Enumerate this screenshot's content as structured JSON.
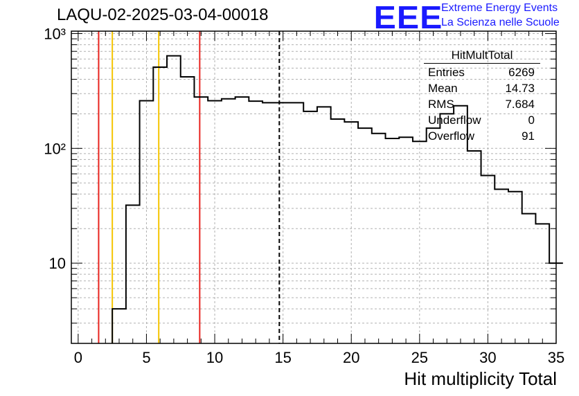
{
  "chart_data": {
    "type": "histogram",
    "title": "LAQU-02-2025-03-04-00018",
    "xlabel": "Hit multiplicity Total",
    "ylabel": "",
    "x_range": [
      -0.5,
      35
    ],
    "y_range": [
      2,
      1050
    ],
    "y_scale": "log",
    "grid": true,
    "bin_width": 1,
    "bin_low_edges": [
      2.5,
      3.5,
      4.5,
      5.5,
      6.5,
      7.5,
      8.5,
      9.5,
      10.5,
      11.5,
      12.5,
      13.5,
      14.5,
      15.5,
      16.5,
      17.5,
      18.5,
      19.5,
      20.5,
      21.5,
      22.5,
      23.5,
      24.5,
      25.5,
      26.5,
      27.5,
      28.5,
      29.5,
      30.5,
      31.5,
      32.5,
      33.5,
      34.5
    ],
    "counts": [
      4,
      32,
      260,
      510,
      640,
      420,
      280,
      260,
      270,
      280,
      258,
      250,
      250,
      250,
      210,
      230,
      180,
      170,
      150,
      135,
      122,
      125,
      115,
      150,
      200,
      235,
      95,
      58,
      44,
      42,
      27,
      22,
      10
    ],
    "x_ticks": [
      0,
      5,
      10,
      15,
      20,
      25,
      30,
      35
    ],
    "x_tick_labels": [
      "0",
      "5",
      "10",
      "15",
      "20",
      "25",
      "30",
      "35"
    ],
    "y_ticks": [
      10,
      100,
      1000
    ],
    "y_tick_labels": [
      "10",
      "10²",
      "10³"
    ],
    "vertical_lines": [
      {
        "x": 1.5,
        "color": "#e8231e",
        "style": "solid"
      },
      {
        "x": 2.5,
        "color": "#f5c400",
        "style": "solid"
      },
      {
        "x": 5.9,
        "color": "#f5c400",
        "style": "solid"
      },
      {
        "x": 8.9,
        "color": "#e8231e",
        "style": "solid"
      },
      {
        "x": 14.73,
        "color": "#000000",
        "style": "dashed"
      }
    ]
  },
  "stats_box": {
    "title": "HitMultTotal",
    "rows": [
      {
        "label": "Entries",
        "value": "6269"
      },
      {
        "label": "Mean",
        "value": "14.73"
      },
      {
        "label": "RMS",
        "value": "7.684"
      },
      {
        "label": "Underflow",
        "value": "0"
      },
      {
        "label": "Overflow",
        "value": "91"
      }
    ]
  },
  "logo": {
    "mark": "EEE",
    "line1": "Extreme Energy Events",
    "line2": "La Scienza nelle Scuole",
    "color": "#1a1aff"
  }
}
